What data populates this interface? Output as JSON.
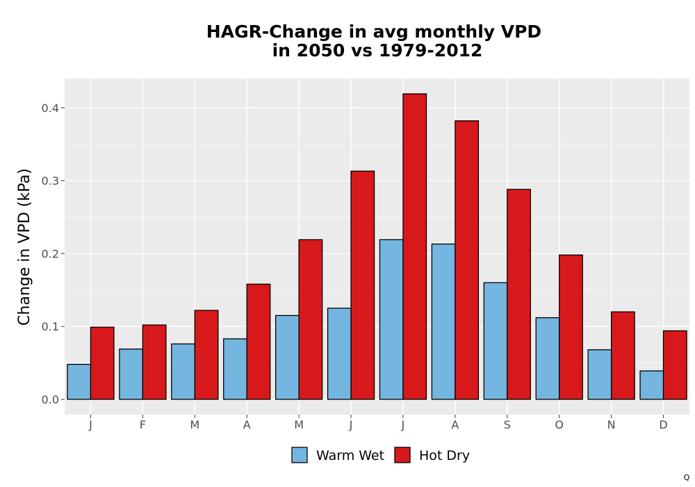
{
  "chart_data": {
    "type": "bar",
    "title_line1": "HAGR-Change in avg monthly VPD",
    "title_line2": "in 2050 vs 1979-2012",
    "xlabel": "",
    "ylabel": "Change in VPD (kPa)",
    "categories": [
      "J",
      "F",
      "M",
      "A",
      "M",
      "J",
      "J",
      "A",
      "S",
      "O",
      "N",
      "D"
    ],
    "series": [
      {
        "name": "Warm Wet",
        "color": "#74b6e0",
        "values": [
          0.048,
          0.069,
          0.076,
          0.083,
          0.115,
          0.125,
          0.219,
          0.213,
          0.16,
          0.112,
          0.068,
          0.039
        ]
      },
      {
        "name": "Hot Dry",
        "color": "#d7191c",
        "values": [
          0.099,
          0.102,
          0.122,
          0.158,
          0.219,
          0.313,
          0.419,
          0.382,
          0.288,
          0.198,
          0.12,
          0.094
        ]
      }
    ],
    "yticks": [
      0.0,
      0.1,
      0.2,
      0.3,
      0.4
    ],
    "ytick_labels": [
      "0.0",
      "0.1",
      "0.2",
      "0.3",
      "0.4"
    ],
    "ylim": [
      -0.02,
      0.44
    ],
    "grid": true,
    "legend_position": "bottom",
    "panel_background": "#ebebeb"
  },
  "corner_mark": "Q"
}
